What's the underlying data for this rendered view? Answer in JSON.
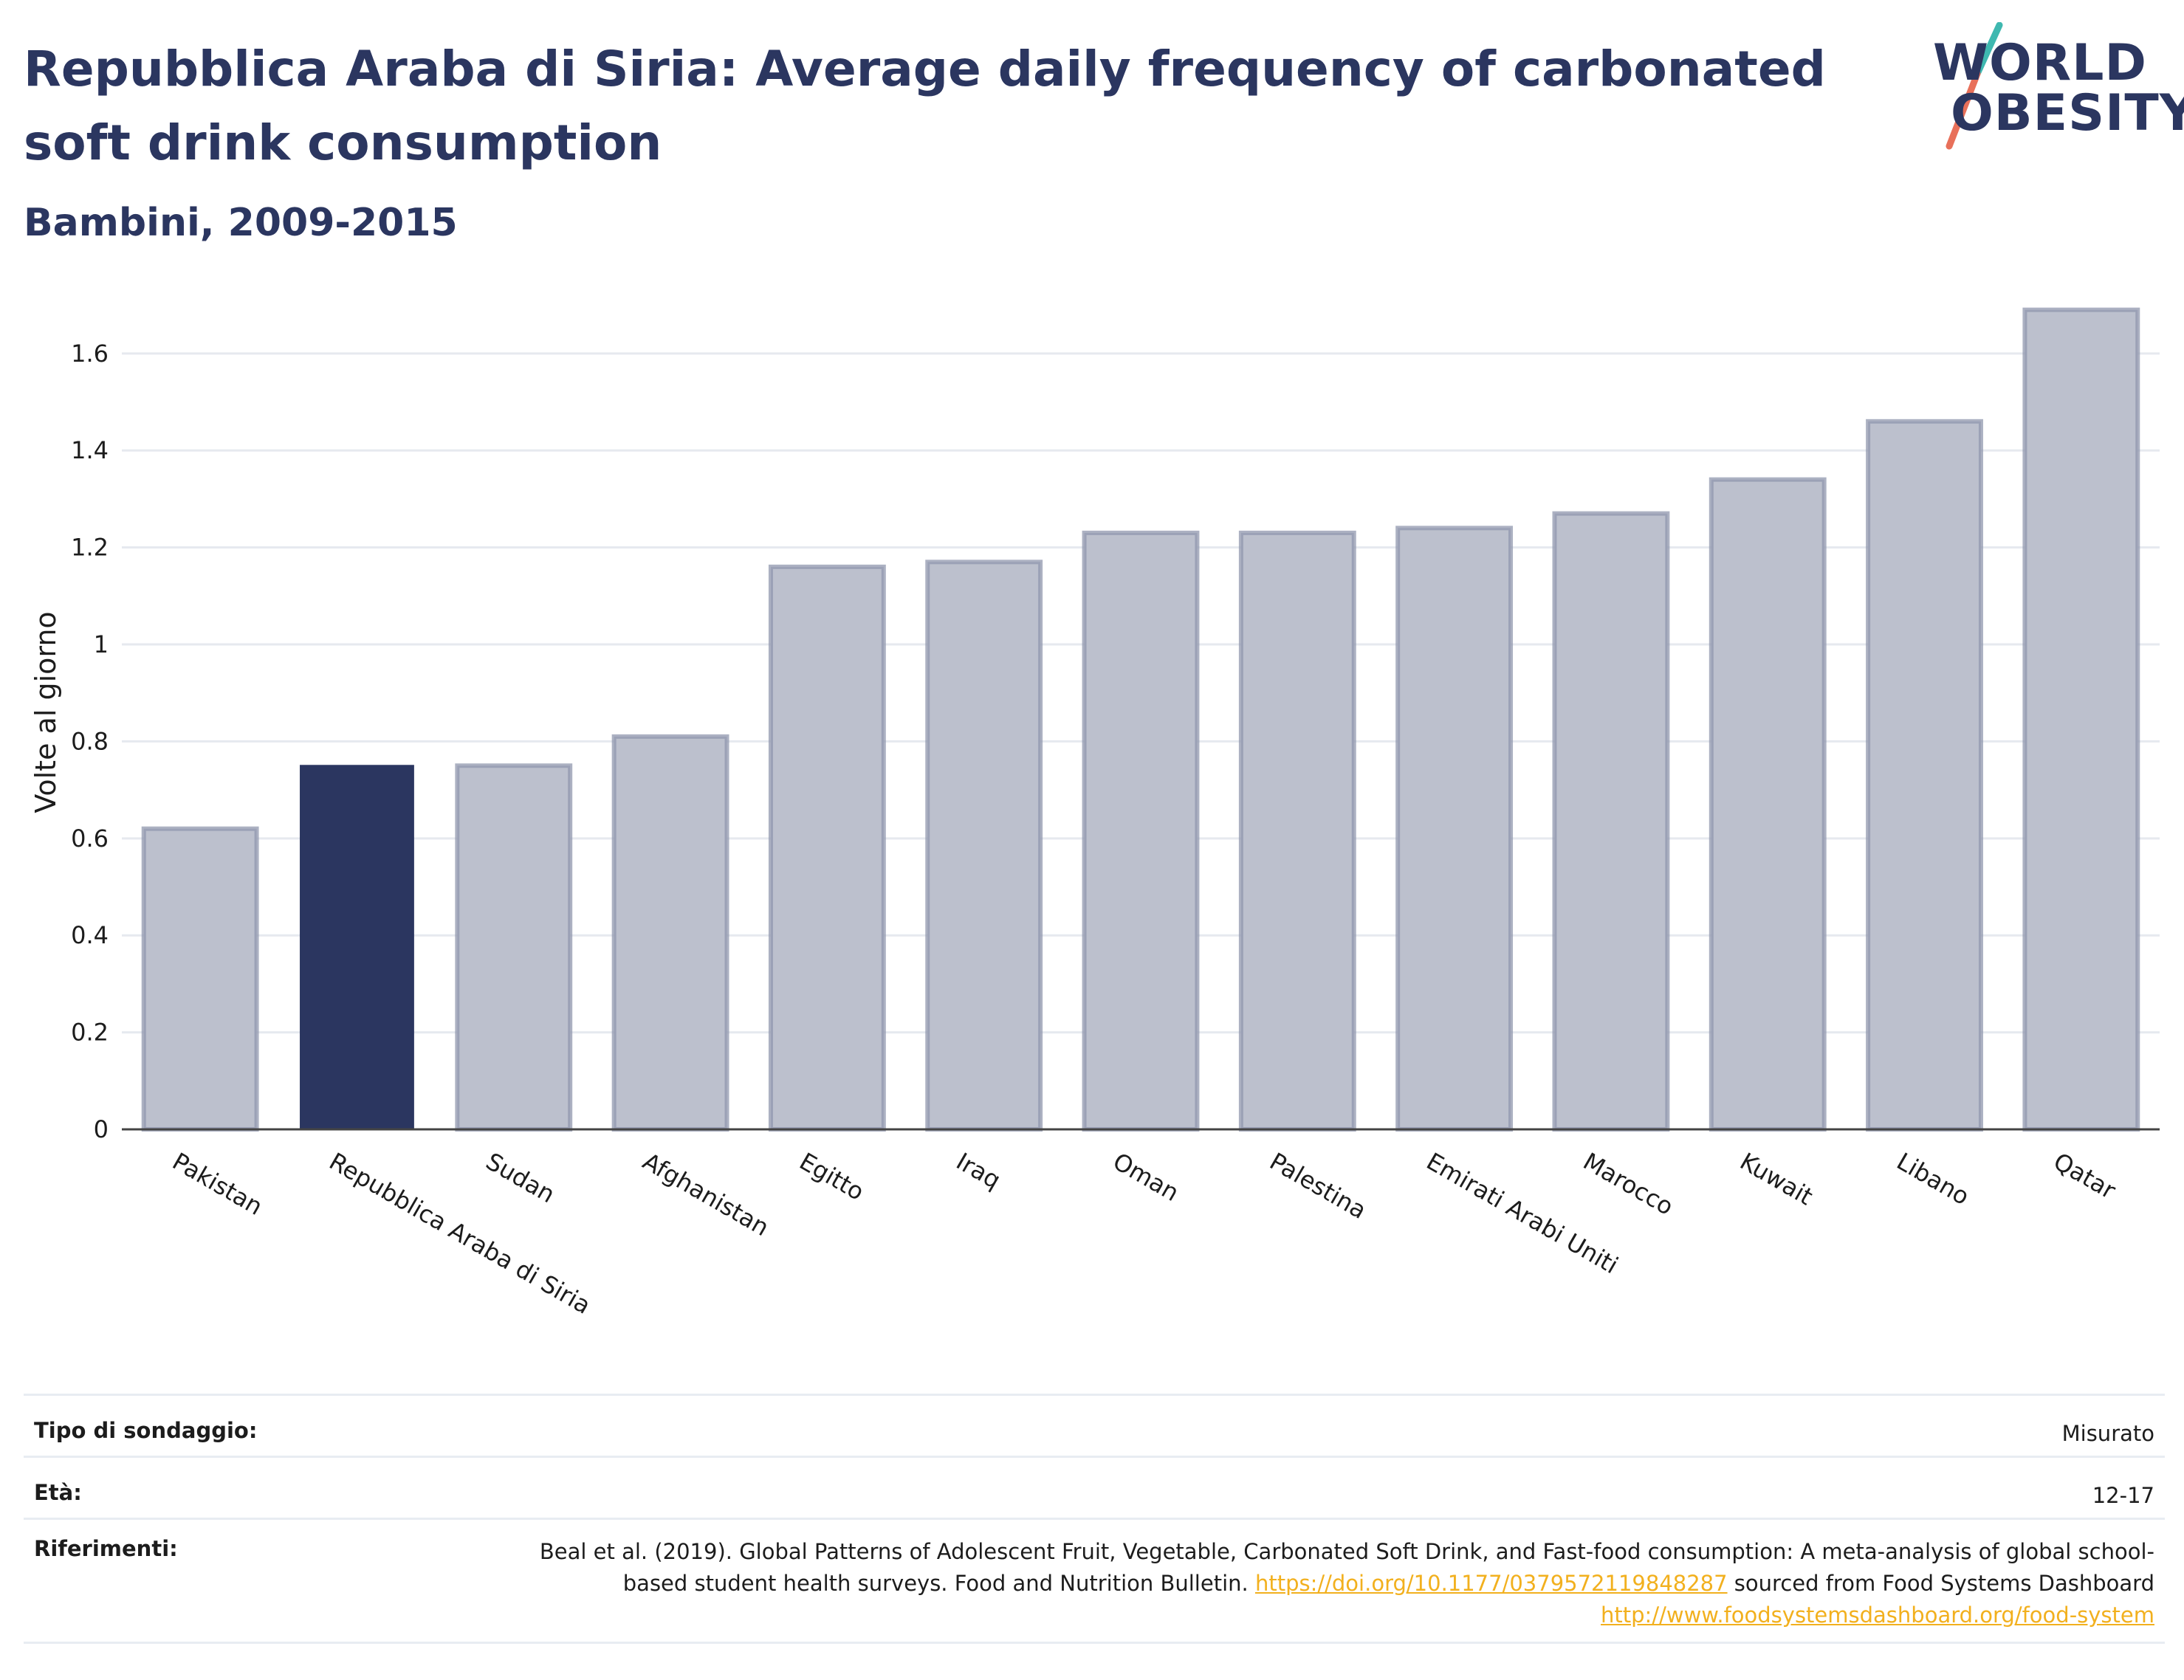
{
  "header": {
    "title": "Repubblica Araba di Siria: Average daily frequency of carbonated soft drink consumption",
    "subtitle": "Bambini, 2009-2015",
    "logo_line1": "WORLD",
    "logo_line2": "OBESITY"
  },
  "colors": {
    "highlight": "#2b3660",
    "bar_fill": "#bcc0cd",
    "bar_stroke": "#9097ad",
    "logo_teal": "#3fb8b0",
    "logo_coral": "#e8705a",
    "link": "#f2b01e"
  },
  "chart_data": {
    "type": "bar",
    "title": "Repubblica Araba di Siria: Average daily frequency of carbonated soft drink consumption",
    "subtitle": "Bambini, 2009-2015",
    "xlabel": "",
    "ylabel": "Volte al giorno",
    "ylim": [
      0,
      1.72
    ],
    "yticks": [
      0,
      0.2,
      0.4,
      0.6,
      0.8,
      1,
      1.2,
      1.4,
      1.6
    ],
    "ytick_labels": [
      "0",
      "0.2",
      "0.4",
      "0.6",
      "0.8",
      "1",
      "1.2",
      "1.4",
      "1.6"
    ],
    "categories": [
      "Pakistan",
      "Repubblica Araba di Siria",
      "Sudan",
      "Afghanistan",
      "Egitto",
      "Iraq",
      "Oman",
      "Palestina",
      "Emirati Arabi Uniti",
      "Marocco",
      "Kuwait",
      "Libano",
      "Qatar"
    ],
    "values": [
      0.62,
      0.75,
      0.75,
      0.81,
      1.16,
      1.17,
      1.23,
      1.23,
      1.24,
      1.27,
      1.34,
      1.46,
      1.69
    ],
    "highlight": "Repubblica Araba di Siria",
    "grid": true,
    "legend": false
  },
  "info": {
    "survey_label": "Tipo di sondaggio:",
    "survey_value": "Misurato",
    "age_label": "Età:",
    "age_value": "12-17",
    "refs_label": "Riferimenti:",
    "refs_text1": "Beal et al. (2019). Global Patterns of Adolescent Fruit, Vegetable, Carbonated Soft Drink, and Fast-food consumption: A meta-analysis of global school-based student health surveys. Food and Nutrition Bulletin.",
    "refs_link1": "https://doi.org/10.1177/0379572119848287",
    "refs_text2": "sourced from Food Systems Dashboard",
    "refs_link2": "http://www.foodsystemsdashboard.org/food-system"
  }
}
